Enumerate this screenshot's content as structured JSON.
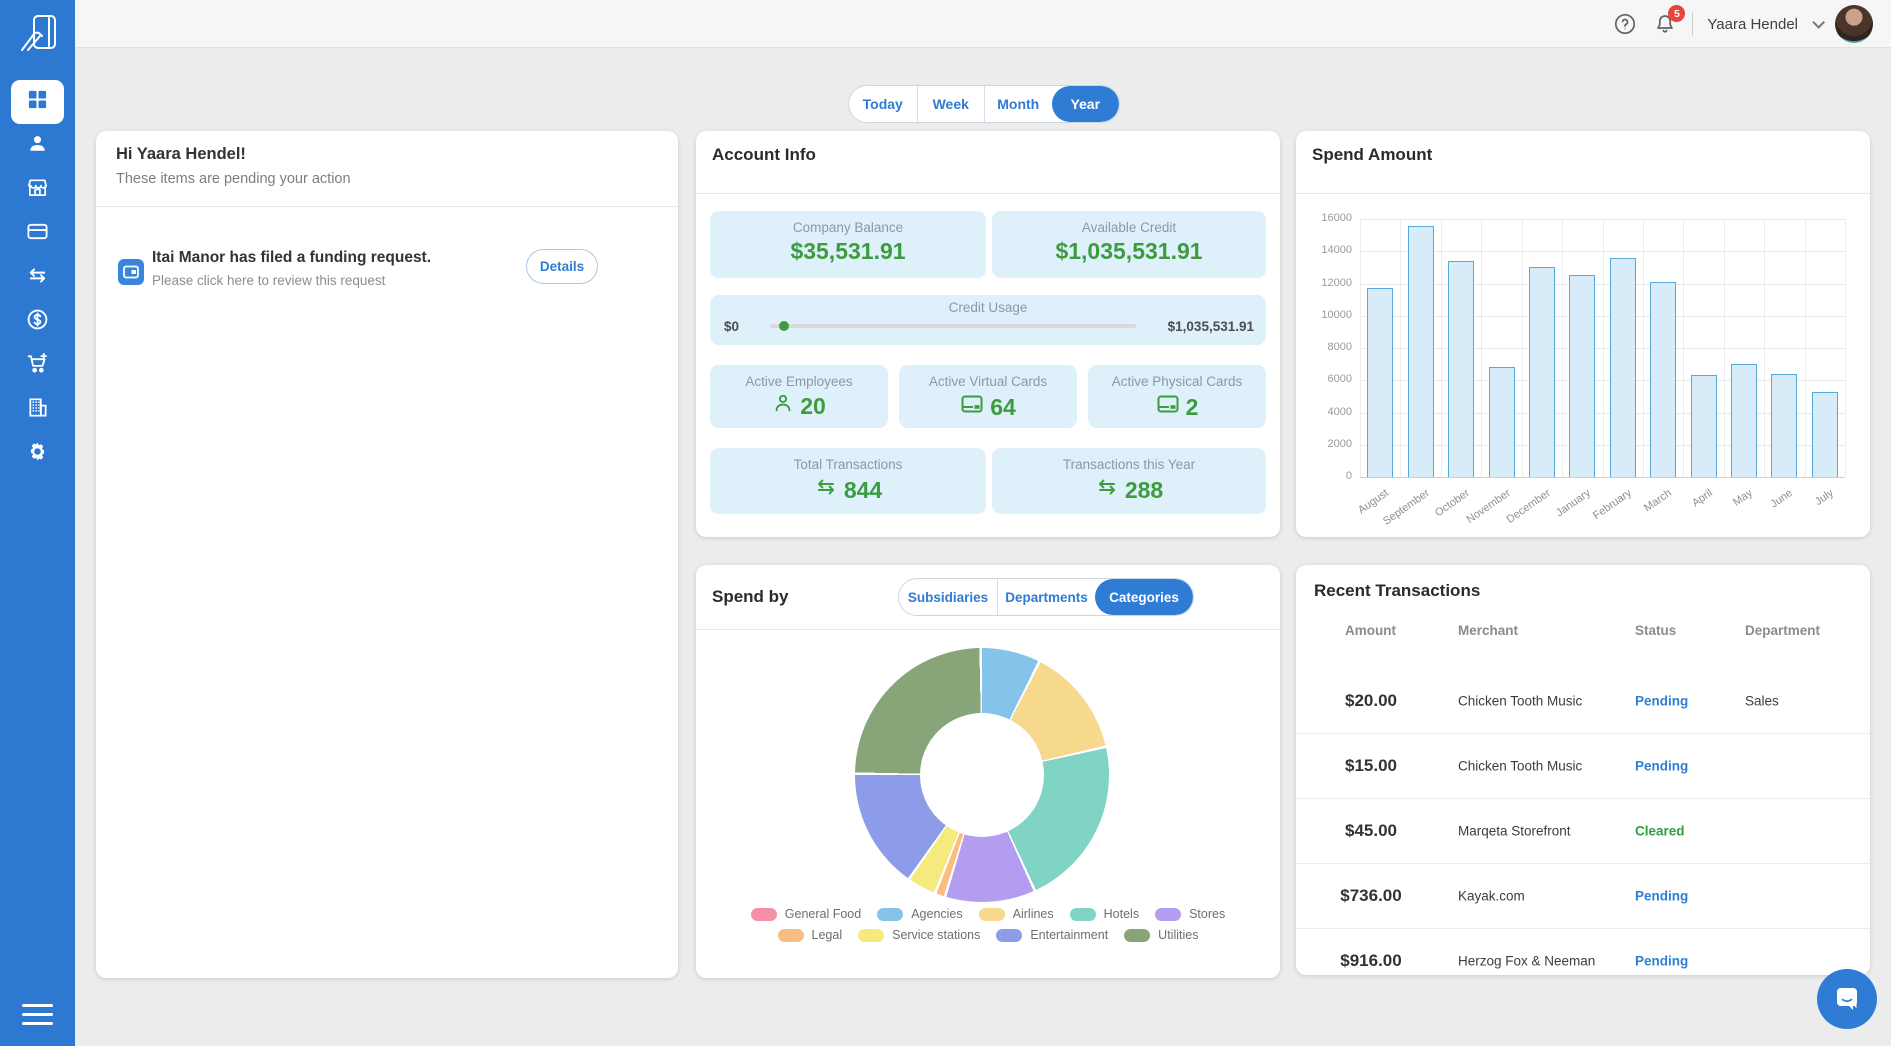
{
  "topbar": {
    "user_name": "Yaara Hendel",
    "notification_count": "5"
  },
  "period_tabs": {
    "options": [
      "Today",
      "Week",
      "Month",
      "Year"
    ],
    "selected": "Year"
  },
  "pending_card": {
    "greeting": "Hi Yaara Hendel!",
    "subtitle": "These items are pending your action",
    "item_icon": "funding-request-icon",
    "item_title": "Itai Manor has filed a funding request.",
    "item_subtitle": "Please click here to review this request",
    "details_label": "Details"
  },
  "account_info": {
    "title": "Account Info",
    "row1": [
      {
        "label": "Company Balance",
        "value": "$35,531.91"
      },
      {
        "label": "Available Credit",
        "value": "$1,035,531.91"
      }
    ],
    "credit_usage": {
      "label": "Credit Usage",
      "min_label": "$0",
      "max_label": "$1,035,531.91",
      "value_pct": 2
    },
    "row2": [
      {
        "label": "Active Employees",
        "value": "20",
        "icon": "user-icon"
      },
      {
        "label": "Active Virtual Cards",
        "value": "64",
        "icon": "card-icon"
      },
      {
        "label": "Active Physical Cards",
        "value": "2",
        "icon": "card-icon"
      }
    ],
    "row3": [
      {
        "label": "Total Transactions",
        "value": "844",
        "icon": "transfer-arrows-icon"
      },
      {
        "label": "Transactions this Year",
        "value": "288",
        "icon": "transfer-arrows-icon"
      }
    ]
  },
  "spend_by": {
    "title": "Spend by",
    "tabs": [
      "Subsidiaries",
      "Departments",
      "Categories"
    ],
    "selected": "Categories"
  },
  "transactions": {
    "title": "Recent Transactions",
    "columns": [
      "Amount",
      "Merchant",
      "Status",
      "Department"
    ],
    "rows": [
      {
        "amount": "$20.00",
        "merchant": "Chicken Tooth Music",
        "status": "Pending",
        "department": "Sales"
      },
      {
        "amount": "$15.00",
        "merchant": "Chicken Tooth Music",
        "status": "Pending",
        "department": ""
      },
      {
        "amount": "$45.00",
        "merchant": "Marqeta Storefront",
        "status": "Cleared",
        "department": ""
      },
      {
        "amount": "$736.00",
        "merchant": "Kayak.com",
        "status": "Pending",
        "department": ""
      },
      {
        "amount": "$916.00",
        "merchant": "Herzog Fox & Neeman",
        "status": "Pending",
        "department": ""
      }
    ],
    "status_colors": {
      "Pending": "#2e7fd4",
      "Cleared": "#2f9e44"
    }
  },
  "chart_data": [
    {
      "type": "bar",
      "title": "Spend Amount",
      "categories": [
        "August",
        "September",
        "October",
        "November",
        "December",
        "January",
        "February",
        "March",
        "April",
        "May",
        "June",
        "July"
      ],
      "values": [
        11700,
        15600,
        13400,
        6800,
        13000,
        12500,
        13600,
        12100,
        6300,
        7000,
        6400,
        5300
      ],
      "xlabel": "",
      "ylabel": "",
      "ylim": [
        0,
        16000
      ],
      "ytick_step": 2000,
      "grid": true,
      "bar_fill": "#d7ebf8",
      "bar_border": "#58a8dc"
    },
    {
      "type": "pie",
      "title": "Spend by Categories",
      "legend_position": "bottom",
      "segments": [
        {
          "label": "General Food",
          "value": 0,
          "color": "#f48fa7"
        },
        {
          "label": "Agencies",
          "value": 7.5,
          "color": "#85c3ea"
        },
        {
          "label": "Airlines",
          "value": 14,
          "color": "#f7d98e"
        },
        {
          "label": "Hotels",
          "value": 22,
          "color": "#7fd4c4"
        },
        {
          "label": "Stores",
          "value": 11.5,
          "color": "#b49cf0"
        },
        {
          "label": "Legal",
          "value": 1,
          "color": "#f8bd80"
        },
        {
          "label": "Service stations",
          "value": 3.5,
          "color": "#f6e97d"
        },
        {
          "label": "Entertainment",
          "value": 15.5,
          "color": "#8d9ce8"
        },
        {
          "label": "Utilities",
          "value": 25,
          "color": "#87a579"
        }
      ]
    }
  ],
  "sidebar": {
    "logo_icon": "hand-card-logo",
    "items": [
      {
        "icon": "dashboard-grid-icon",
        "active": true
      },
      {
        "icon": "person-icon"
      },
      {
        "icon": "store-icon"
      },
      {
        "icon": "credit-card-icon"
      },
      {
        "icon": "transfer-arrows-icon"
      },
      {
        "icon": "dollar-icon"
      },
      {
        "icon": "cart-plus-icon"
      },
      {
        "icon": "building-icon"
      },
      {
        "icon": "gear-icon"
      }
    ],
    "bottom_icon": "menu-icon"
  },
  "colors": {
    "accent_blue": "#2e7cd4",
    "green": "#3d9b40",
    "sidebar_blue": "#2d79d2",
    "badge_red": "#e8453c"
  }
}
